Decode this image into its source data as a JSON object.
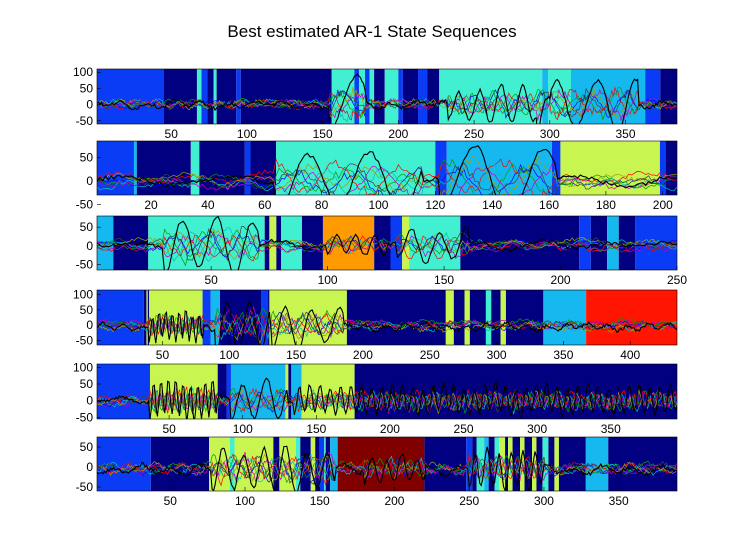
{
  "chart_data": {
    "type": "line",
    "title": "Best estimated AR-1 State Sequences",
    "state_colors": {
      "1": "#000080",
      "2": "#0a3cf5",
      "3": "#16b8f0",
      "4": "#40f0d0",
      "5": "#c8f550",
      "6": "#ff9a00",
      "7": "#ff1500",
      "8": "#800000"
    },
    "series_colors": [
      "#0000ff",
      "#00a000",
      "#ff0000",
      "#00c0c0",
      "#c000c0",
      "#a0a000",
      "#404040",
      "#000000",
      "#ff8080",
      "#8080ff"
    ],
    "panels": [
      {
        "xlim": [
          1,
          384
        ],
        "xticks": [
          50,
          100,
          150,
          200,
          250,
          300,
          350
        ],
        "ylim": [
          -60,
          110
        ],
        "yticks": [
          100,
          50,
          0,
          -50
        ],
        "segments": [
          [
            1,
            45,
            2
          ],
          [
            45,
            67,
            1
          ],
          [
            67,
            70,
            4
          ],
          [
            70,
            74,
            2
          ],
          [
            74,
            78,
            1
          ],
          [
            78,
            80,
            4
          ],
          [
            80,
            93,
            1
          ],
          [
            93,
            96,
            2
          ],
          [
            96,
            156,
            1
          ],
          [
            156,
            171,
            4
          ],
          [
            171,
            174,
            2
          ],
          [
            174,
            178,
            4
          ],
          [
            178,
            181,
            2
          ],
          [
            181,
            184,
            4
          ],
          [
            184,
            191,
            1
          ],
          [
            191,
            200,
            4
          ],
          [
            200,
            203,
            2
          ],
          [
            203,
            213,
            1
          ],
          [
            213,
            219,
            2
          ],
          [
            219,
            227,
            1
          ],
          [
            227,
            295,
            4
          ],
          [
            295,
            299,
            3
          ],
          [
            299,
            314,
            4
          ],
          [
            314,
            363,
            3
          ],
          [
            363,
            373,
            2
          ],
          [
            373,
            384,
            1
          ]
        ],
        "osc": [
          [
            155,
            178,
            90,
            34
          ],
          [
            292,
            358,
            75,
            26
          ],
          [
            233,
            300,
            50,
            14
          ]
        ]
      },
      {
        "xlim": [
          1,
          205
        ],
        "xticks": [
          20,
          40,
          60,
          80,
          100,
          120,
          140,
          160,
          180,
          200
        ],
        "ylim": [
          -30,
          85
        ],
        "yticks": [
          50,
          0,
          -50
        ],
        "segments": [
          [
            1,
            14,
            2
          ],
          [
            14,
            15,
            3
          ],
          [
            15,
            34,
            1
          ],
          [
            34,
            37,
            4
          ],
          [
            37,
            53,
            1
          ],
          [
            53,
            55,
            2
          ],
          [
            55,
            64,
            1
          ],
          [
            64,
            120,
            4
          ],
          [
            120,
            124,
            2
          ],
          [
            124,
            161,
            3
          ],
          [
            161,
            164,
            2
          ],
          [
            164,
            199,
            5
          ],
          [
            199,
            201,
            2
          ],
          [
            201,
            205,
            1
          ]
        ],
        "osc": [
          [
            64,
            115,
            60,
            22
          ],
          [
            122,
            162,
            68,
            24
          ]
        ]
      },
      {
        "xlim": [
          1,
          250
        ],
        "xticks": [
          50,
          100,
          150,
          200,
          250
        ],
        "ylim": [
          -65,
          80
        ],
        "yticks": [
          50,
          0,
          -50
        ],
        "segments": [
          [
            1,
            8,
            3
          ],
          [
            8,
            23,
            1
          ],
          [
            23,
            73,
            4
          ],
          [
            73,
            75,
            1
          ],
          [
            75,
            78,
            5
          ],
          [
            78,
            80,
            1
          ],
          [
            80,
            89,
            4
          ],
          [
            89,
            98,
            1
          ],
          [
            98,
            120,
            6
          ],
          [
            120,
            127,
            1
          ],
          [
            127,
            132,
            2
          ],
          [
            132,
            135,
            5
          ],
          [
            135,
            157,
            4
          ],
          [
            157,
            208,
            1
          ],
          [
            208,
            213,
            2
          ],
          [
            213,
            220,
            1
          ],
          [
            220,
            225,
            3
          ],
          [
            225,
            232,
            1
          ],
          [
            232,
            250,
            2
          ]
        ],
        "osc": [
          [
            30,
            70,
            70,
            15
          ],
          [
            100,
            125,
            25,
            8
          ],
          [
            130,
            160,
            40,
            12
          ]
        ]
      },
      {
        "xlim": [
          1,
          435
        ],
        "xticks": [
          50,
          100,
          150,
          200,
          250,
          300,
          350,
          400
        ],
        "ylim": [
          -65,
          115
        ],
        "yticks": [
          100,
          50,
          0,
          -50
        ],
        "segments": [
          [
            1,
            36,
            2
          ],
          [
            36,
            38,
            1
          ],
          [
            38,
            39,
            5
          ],
          [
            39,
            40,
            1
          ],
          [
            40,
            80,
            5
          ],
          [
            80,
            86,
            2
          ],
          [
            86,
            93,
            3
          ],
          [
            93,
            124,
            1
          ],
          [
            124,
            129,
            2
          ],
          [
            129,
            130,
            1
          ],
          [
            130,
            132,
            5
          ],
          [
            132,
            188,
            5
          ],
          [
            188,
            262,
            1
          ],
          [
            262,
            268,
            5
          ],
          [
            268,
            276,
            1
          ],
          [
            276,
            280,
            5
          ],
          [
            280,
            292,
            1
          ],
          [
            292,
            296,
            4
          ],
          [
            296,
            303,
            1
          ],
          [
            303,
            307,
            5
          ],
          [
            307,
            335,
            1
          ],
          [
            335,
            367,
            3
          ],
          [
            367,
            435,
            7
          ]
        ],
        "osc": [
          [
            40,
            80,
            45,
            5
          ],
          [
            90,
            130,
            80,
            17
          ],
          [
            132,
            185,
            60,
            20
          ]
        ]
      },
      {
        "xlim": [
          1,
          395
        ],
        "xticks": [
          50,
          100,
          150,
          200,
          250,
          300,
          350
        ],
        "ylim": [
          -55,
          110
        ],
        "yticks": [
          100,
          50,
          0,
          -50
        ],
        "segments": [
          [
            1,
            37,
            2
          ],
          [
            37,
            83,
            5
          ],
          [
            83,
            89,
            1
          ],
          [
            89,
            92,
            2
          ],
          [
            92,
            129,
            3
          ],
          [
            129,
            131,
            5
          ],
          [
            131,
            133,
            1
          ],
          [
            133,
            140,
            3
          ],
          [
            140,
            176,
            5
          ],
          [
            176,
            395,
            1
          ]
        ],
        "osc": [
          [
            37,
            83,
            55,
            5
          ],
          [
            92,
            130,
            55,
            16
          ],
          [
            135,
            395,
            40,
            7
          ]
        ]
      },
      {
        "xlim": [
          1,
          389
        ],
        "xticks": [
          50,
          100,
          150,
          200,
          250,
          300,
          350
        ],
        "ylim": [
          -60,
          75
        ],
        "yticks": [
          50,
          0,
          -50
        ],
        "segments": [
          [
            1,
            37,
            2
          ],
          [
            37,
            76,
            1
          ],
          [
            76,
            90,
            5
          ],
          [
            90,
            93,
            4
          ],
          [
            93,
            119,
            5
          ],
          [
            119,
            123,
            1
          ],
          [
            123,
            134,
            5
          ],
          [
            134,
            137,
            4
          ],
          [
            137,
            144,
            1
          ],
          [
            144,
            147,
            5
          ],
          [
            147,
            150,
            1
          ],
          [
            150,
            153,
            2
          ],
          [
            153,
            154,
            4
          ],
          [
            154,
            157,
            1
          ],
          [
            157,
            162,
            3
          ],
          [
            162,
            220,
            8
          ],
          [
            220,
            248,
            1
          ],
          [
            248,
            252,
            2
          ],
          [
            252,
            255,
            1
          ],
          [
            255,
            260,
            4
          ],
          [
            260,
            263,
            3
          ],
          [
            263,
            267,
            1
          ],
          [
            267,
            270,
            4
          ],
          [
            270,
            274,
            5
          ],
          [
            274,
            276,
            1
          ],
          [
            276,
            279,
            5
          ],
          [
            279,
            284,
            1
          ],
          [
            284,
            287,
            5
          ],
          [
            287,
            292,
            1
          ],
          [
            292,
            295,
            5
          ],
          [
            295,
            299,
            1
          ],
          [
            299,
            303,
            4
          ],
          [
            303,
            307,
            1
          ],
          [
            307,
            310,
            5
          ],
          [
            310,
            328,
            1
          ],
          [
            328,
            343,
            3
          ],
          [
            343,
            389,
            1
          ]
        ],
        "osc": [
          [
            78,
            160,
            50,
            14
          ],
          [
            180,
            220,
            30,
            10
          ],
          [
            250,
            300,
            45,
            8
          ]
        ]
      }
    ]
  }
}
